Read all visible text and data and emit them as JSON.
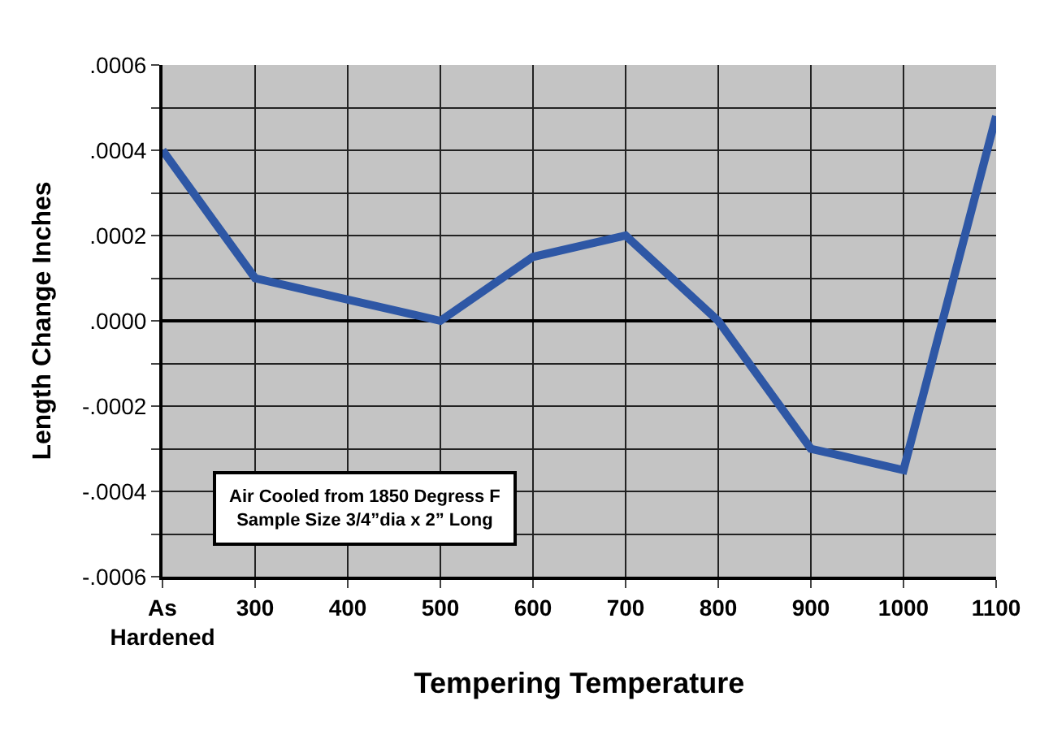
{
  "chart_data": {
    "type": "line",
    "xlabel": "Tempering Temperature",
    "ylabel": "Length Change Inches",
    "categories": [
      "As Hardened",
      "300",
      "400",
      "500",
      "600",
      "700",
      "800",
      "900",
      "1000",
      "1100"
    ],
    "series": [
      {
        "color": "#2e57a5",
        "values": [
          0.0004,
          0.0001,
          5e-05,
          0.0,
          0.00015,
          0.0002,
          0.0,
          -0.0003,
          -0.00035,
          0.00048
        ]
      }
    ],
    "ylim": [
      -0.0006,
      0.0006
    ],
    "yticks": [
      {
        "value": -0.0006,
        "label": "-.0006"
      },
      {
        "value": -0.0005,
        "label": null
      },
      {
        "value": -0.0004,
        "label": "-.0004"
      },
      {
        "value": -0.0003,
        "label": null
      },
      {
        "value": -0.0002,
        "label": "-.0002"
      },
      {
        "value": -0.0001,
        "label": null
      },
      {
        "value": 0,
        "label": ".0000"
      },
      {
        "value": 0.0001,
        "label": null
      },
      {
        "value": 0.0002,
        "label": ".0002"
      },
      {
        "value": 0.0003,
        "label": null
      },
      {
        "value": 0.0004,
        "label": ".0004"
      },
      {
        "value": 0.0005,
        "label": null
      },
      {
        "value": 0.0006,
        "label": ".0006"
      }
    ],
    "grid": true,
    "legend": false,
    "marker": "none",
    "line_style": "solid",
    "annotations": [
      "Air Cooled from 1850 Degress F\nSample Size 3/4”dia x 2” Long"
    ]
  }
}
